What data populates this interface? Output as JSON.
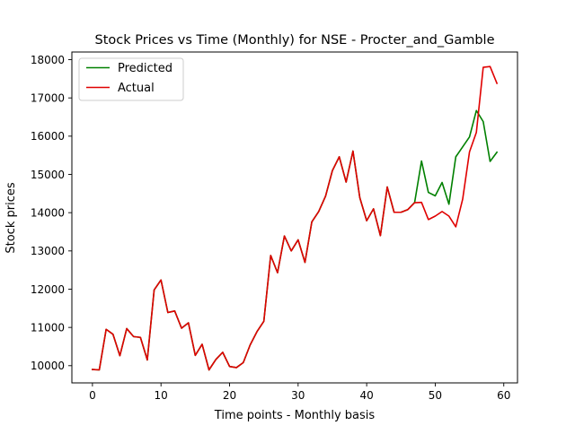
{
  "chart_data": {
    "type": "line",
    "title": "Stock Prices vs Time (Monthly) for NSE - Procter_and_Gamble",
    "xlabel": "Time points - Monthly basis",
    "ylabel": "Stock prices",
    "xlim": [
      -3,
      62
    ],
    "ylim": [
      9550,
      18200
    ],
    "xticks": [
      0,
      10,
      20,
      30,
      40,
      50,
      60
    ],
    "yticks": [
      10000,
      11000,
      12000,
      13000,
      14000,
      15000,
      16000,
      17000,
      18000
    ],
    "grid": false,
    "legend_position": "upper-left",
    "x": [
      0,
      1,
      2,
      3,
      4,
      5,
      6,
      7,
      8,
      9,
      10,
      11,
      12,
      13,
      14,
      15,
      16,
      17,
      18,
      19,
      20,
      21,
      22,
      23,
      24,
      25,
      26,
      27,
      28,
      29,
      30,
      31,
      32,
      33,
      34,
      35,
      36,
      37,
      38,
      39,
      40,
      41,
      42,
      43,
      44,
      45,
      46,
      47,
      48,
      49,
      50,
      51,
      52,
      53,
      54,
      55,
      56,
      57,
      58,
      59
    ],
    "series": [
      {
        "name": "Predicted",
        "color": "#008000",
        "values": [
          9900,
          9890,
          10950,
          10820,
          10260,
          10970,
          10760,
          10740,
          10150,
          11980,
          12240,
          11390,
          11430,
          10980,
          11120,
          10270,
          10560,
          9890,
          10160,
          10350,
          9980,
          9950,
          10080,
          10540,
          10890,
          11160,
          12880,
          12430,
          13390,
          13000,
          13290,
          12700,
          13760,
          14030,
          14430,
          15100,
          15460,
          14800,
          15610,
          14390,
          13790,
          14100,
          13400,
          14670,
          14010,
          14010,
          14080,
          14270,
          15350,
          14530,
          14440,
          14790,
          14220,
          15460,
          15720,
          15980,
          16670,
          16380,
          15340,
          15580
        ]
      },
      {
        "name": "Actual",
        "color": "#e00000",
        "values": [
          9900,
          9890,
          10950,
          10820,
          10260,
          10970,
          10760,
          10740,
          10150,
          11980,
          12240,
          11390,
          11430,
          10980,
          11120,
          10270,
          10560,
          9890,
          10160,
          10350,
          9980,
          9950,
          10080,
          10540,
          10890,
          11160,
          12880,
          12430,
          13390,
          13000,
          13290,
          12700,
          13760,
          14030,
          14430,
          15100,
          15460,
          14800,
          15610,
          14390,
          13790,
          14100,
          13400,
          14670,
          14010,
          14010,
          14080,
          14260,
          14270,
          13820,
          13910,
          14030,
          13910,
          13630,
          14350,
          15590,
          16100,
          17800,
          17820,
          17380
        ]
      }
    ]
  }
}
